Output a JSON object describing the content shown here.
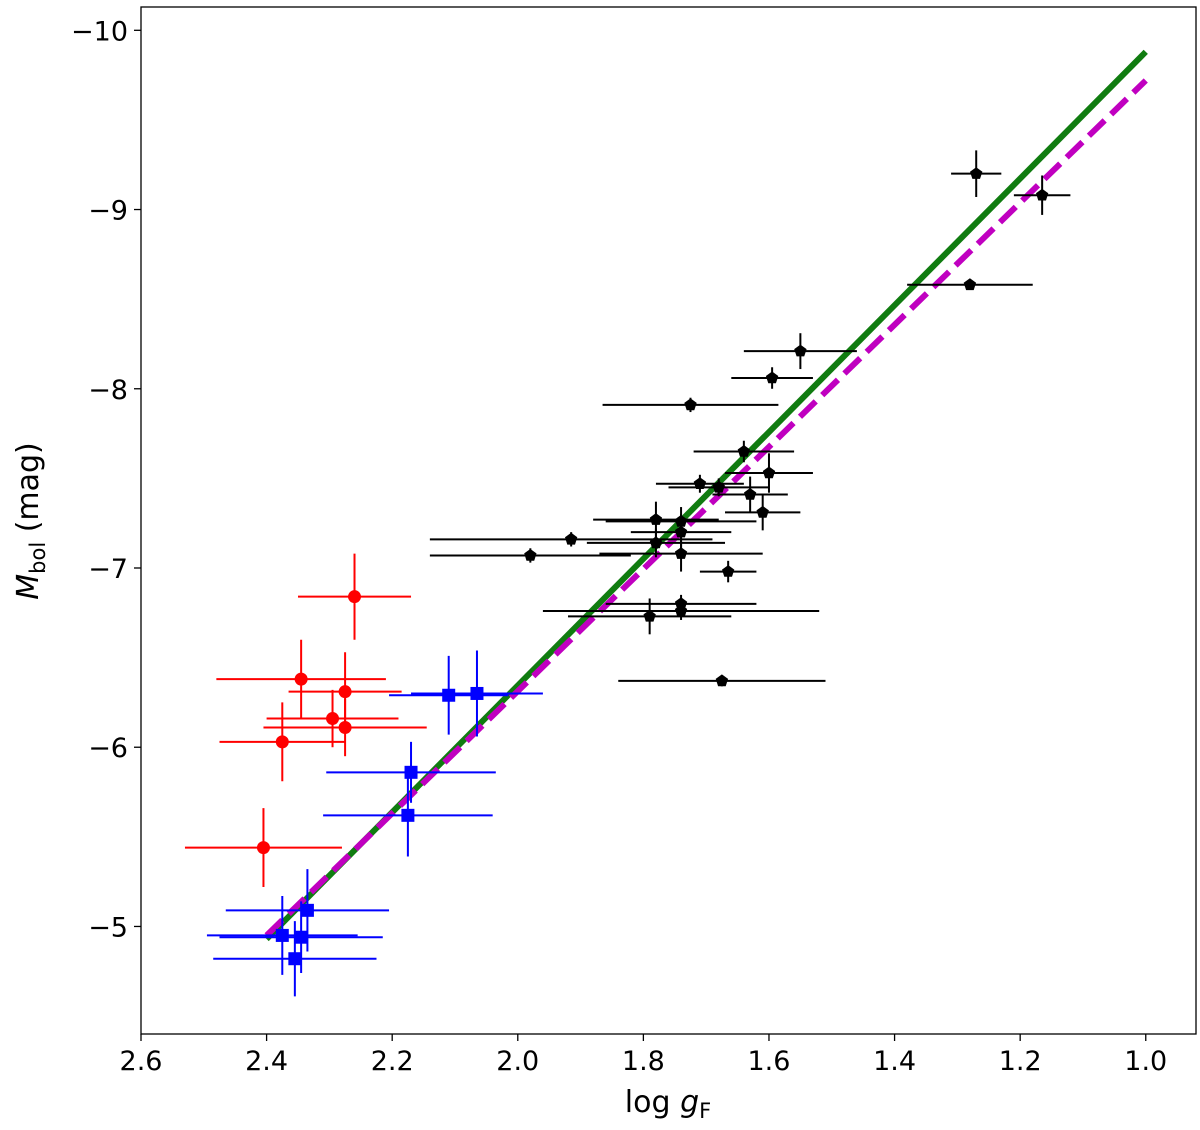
{
  "chart_data": {
    "type": "scatter",
    "xlabel": {
      "main": "log ",
      "italic": "g",
      "sub": "F"
    },
    "ylabel": {
      "italic": "M",
      "sub": "bol",
      "rest": " (mag)"
    },
    "xlim": [
      2.6,
      0.92
    ],
    "ylim": [
      -4.4,
      -10.13
    ],
    "x_inverted": true,
    "y_inverted": true,
    "xticks": [
      2.6,
      2.4,
      2.2,
      2.0,
      1.8,
      1.6,
      1.4,
      1.2,
      1.0
    ],
    "xtick_labels": [
      "2.6",
      "2.4",
      "2.2",
      "2.0",
      "1.8",
      "1.6",
      "1.4",
      "1.2",
      "1.0"
    ],
    "yticks": [
      -5,
      -6,
      -7,
      -8,
      -9,
      -10
    ],
    "ytick_labels": [
      "−5",
      "−6",
      "−7",
      "−8",
      "−9",
      "−10"
    ],
    "grid": false,
    "series": [
      {
        "marker": "circle",
        "color": "#ff0000",
        "points": [
          {
            "x": 2.26,
            "y": -6.84,
            "xerr": 0.09,
            "yerr": 0.24
          },
          {
            "x": 2.345,
            "y": -6.38,
            "xerr": 0.135,
            "yerr": 0.22
          },
          {
            "x": 2.275,
            "y": -6.31,
            "xerr": 0.09,
            "yerr": 0.22
          },
          {
            "x": 2.295,
            "y": -6.16,
            "xerr": 0.105,
            "yerr": 0.16
          },
          {
            "x": 2.275,
            "y": -6.11,
            "xerr": 0.13,
            "yerr": 0.16
          },
          {
            "x": 2.375,
            "y": -6.03,
            "xerr": 0.1,
            "yerr": 0.22
          },
          {
            "x": 2.405,
            "y": -5.44,
            "xerr": 0.125,
            "yerr": 0.22
          }
        ]
      },
      {
        "marker": "square",
        "color": "#0000ff",
        "points": [
          {
            "x": 2.11,
            "y": -6.29,
            "xerr": 0.095,
            "yerr": 0.22
          },
          {
            "x": 2.065,
            "y": -6.3,
            "xerr": 0.105,
            "yerr": 0.24
          },
          {
            "x": 2.17,
            "y": -5.86,
            "xerr": 0.135,
            "yerr": 0.17
          },
          {
            "x": 2.175,
            "y": -5.62,
            "xerr": 0.135,
            "yerr": 0.23
          },
          {
            "x": 2.335,
            "y": -5.09,
            "xerr": 0.13,
            "yerr": 0.23
          },
          {
            "x": 2.375,
            "y": -4.95,
            "xerr": 0.12,
            "yerr": 0.22
          },
          {
            "x": 2.345,
            "y": -4.94,
            "xerr": 0.13,
            "yerr": 0.2
          },
          {
            "x": 2.355,
            "y": -4.82,
            "xerr": 0.13,
            "yerr": 0.21
          }
        ]
      },
      {
        "marker": "pentagon",
        "color": "#000000",
        "points": [
          {
            "x": 1.27,
            "y": -9.2,
            "xerr": 0.04,
            "yerr": 0.13
          },
          {
            "x": 1.165,
            "y": -9.08,
            "xerr": 0.045,
            "yerr": 0.11
          },
          {
            "x": 1.28,
            "y": -8.58,
            "xerr": 0.1,
            "yerr": 0.02
          },
          {
            "x": 1.55,
            "y": -8.21,
            "xerr": 0.09,
            "yerr": 0.1
          },
          {
            "x": 1.595,
            "y": -8.06,
            "xerr": 0.065,
            "yerr": 0.06
          },
          {
            "x": 1.725,
            "y": -7.91,
            "xerr": 0.14,
            "yerr": 0.04
          },
          {
            "x": 1.64,
            "y": -7.65,
            "xerr": 0.08,
            "yerr": 0.06
          },
          {
            "x": 1.6,
            "y": -7.53,
            "xerr": 0.07,
            "yerr": 0.11
          },
          {
            "x": 1.71,
            "y": -7.47,
            "xerr": 0.07,
            "yerr": 0.05
          },
          {
            "x": 1.68,
            "y": -7.45,
            "xerr": 0.08,
            "yerr": 0.05
          },
          {
            "x": 1.63,
            "y": -7.41,
            "xerr": 0.06,
            "yerr": 0.1
          },
          {
            "x": 1.61,
            "y": -7.31,
            "xerr": 0.06,
            "yerr": 0.1
          },
          {
            "x": 1.78,
            "y": -7.27,
            "xerr": 0.1,
            "yerr": 0.1
          },
          {
            "x": 1.74,
            "y": -7.26,
            "xerr": 0.12,
            "yerr": 0.08
          },
          {
            "x": 1.74,
            "y": -7.2,
            "xerr": 0.08,
            "yerr": 0.1
          },
          {
            "x": 1.915,
            "y": -7.16,
            "xerr": 0.225,
            "yerr": 0.04
          },
          {
            "x": 1.78,
            "y": -7.14,
            "xerr": 0.11,
            "yerr": 0.08
          },
          {
            "x": 1.98,
            "y": -7.07,
            "xerr": 0.16,
            "yerr": 0.04
          },
          {
            "x": 1.74,
            "y": -7.08,
            "xerr": 0.13,
            "yerr": 0.1
          },
          {
            "x": 1.665,
            "y": -6.98,
            "xerr": 0.045,
            "yerr": 0.06
          },
          {
            "x": 1.74,
            "y": -6.8,
            "xerr": 0.12,
            "yerr": 0.05
          },
          {
            "x": 1.74,
            "y": -6.76,
            "xerr": 0.22,
            "yerr": 0.05
          },
          {
            "x": 1.79,
            "y": -6.73,
            "xerr": 0.13,
            "yerr": 0.1
          },
          {
            "x": 1.675,
            "y": -6.37,
            "xerr": 0.165,
            "yerr": 0.03
          }
        ]
      }
    ],
    "lines": [
      {
        "style": "solid",
        "color": "#107c10",
        "x": [
          2.4,
          1.0
        ],
        "y": [
          -4.93,
          -9.88
        ]
      },
      {
        "style": "dashed",
        "color": "#c000c0",
        "x": [
          2.4,
          1.0
        ],
        "y": [
          -4.95,
          -9.72
        ]
      }
    ]
  }
}
